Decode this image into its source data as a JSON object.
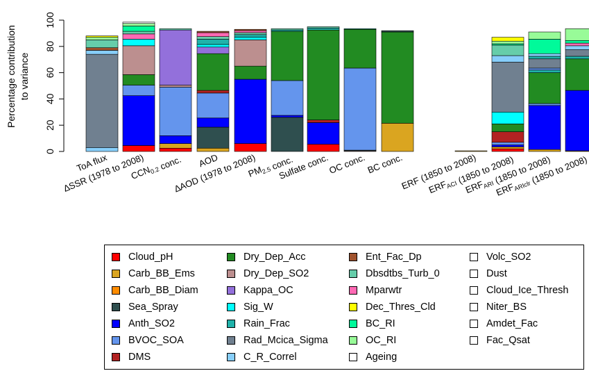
{
  "chart_data": {
    "type": "bar",
    "stacked": true,
    "ylabel": "Percentage contribution to variance",
    "ylabel_lines": [
      "Percentage contribution",
      "to variance"
    ],
    "ylim": [
      0,
      100
    ],
    "yticks": [
      0,
      20,
      40,
      60,
      80,
      100
    ],
    "categories": [
      {
        "key": "toa",
        "label": [
          {
            "t": "ToA flux"
          }
        ]
      },
      {
        "key": "dssr",
        "label": [
          {
            "t": "∆SSR (1978 to 2008)"
          }
        ]
      },
      {
        "key": "ccn",
        "label": [
          {
            "t": "CCN"
          },
          {
            "t": "0.2",
            "sub": true
          },
          {
            "t": " conc."
          }
        ]
      },
      {
        "key": "aod",
        "label": [
          {
            "t": "AOD"
          }
        ]
      },
      {
        "key": "daod",
        "label": [
          {
            "t": "∆AOD (1978 to 2008)"
          }
        ]
      },
      {
        "key": "pm25",
        "label": [
          {
            "t": "PM"
          },
          {
            "t": "2.5",
            "sub": true
          },
          {
            "t": " conc."
          }
        ]
      },
      {
        "key": "sulf",
        "label": [
          {
            "t": "Sulfate conc."
          }
        ]
      },
      {
        "key": "oc",
        "label": [
          {
            "t": "OC conc."
          }
        ]
      },
      {
        "key": "bc",
        "label": [
          {
            "t": "BC conc."
          }
        ]
      },
      {
        "key": "erf",
        "label": [
          {
            "t": "ERF (1850 to 2008)"
          }
        ]
      },
      {
        "key": "erfaci",
        "label": [
          {
            "t": "ERF"
          },
          {
            "t": "ACI",
            "sub": true
          },
          {
            "t": " (1850 to 2008)"
          }
        ]
      },
      {
        "key": "erfari",
        "label": [
          {
            "t": "ERF"
          },
          {
            "t": "ARI",
            "sub": true
          },
          {
            "t": " (1850 to 2008)"
          }
        ]
      },
      {
        "key": "erfariclr",
        "label": [
          {
            "t": "ERF"
          },
          {
            "t": "ARIclr",
            "sub": true
          },
          {
            "t": " (1850 to 2008)"
          }
        ]
      }
    ],
    "legend": [
      {
        "name": "Cloud_pH",
        "color": "#ff0000"
      },
      {
        "name": "Carb_BB_Ems",
        "color": "#daa520"
      },
      {
        "name": "Carb_BB_Diam",
        "color": "#ff8c00"
      },
      {
        "name": "Sea_Spray",
        "color": "#2f4f4f"
      },
      {
        "name": "Anth_SO2",
        "color": "#0000ff"
      },
      {
        "name": "BVOC_SOA",
        "color": "#6495ed"
      },
      {
        "name": "DMS",
        "color": "#b22222"
      },
      {
        "name": "Dry_Dep_Acc",
        "color": "#228b22"
      },
      {
        "name": "Dry_Dep_SO2",
        "color": "#bc8f8f"
      },
      {
        "name": "Kappa_OC",
        "color": "#9370db"
      },
      {
        "name": "Sig_W",
        "color": "#00ffff"
      },
      {
        "name": "Rain_Frac",
        "color": "#20b2aa"
      },
      {
        "name": "Rad_Mcica_Sigma",
        "color": "#708090"
      },
      {
        "name": "C_R_Correl",
        "color": "#87cefa"
      },
      {
        "name": "Ent_Fac_Dp",
        "color": "#a0522d"
      },
      {
        "name": "Dbsdtbs_Turb_0",
        "color": "#66cdaa"
      },
      {
        "name": "Mparwtr",
        "color": "#ff69b4"
      },
      {
        "name": "Dec_Thres_Cld",
        "color": "#ffff00"
      },
      {
        "name": "BC_RI",
        "color": "#00fa9a"
      },
      {
        "name": "OC_RI",
        "color": "#98fb98"
      },
      {
        "name": "Ageing",
        "color": "#ffffff"
      },
      {
        "name": "Volc_SO2",
        "color": "#ffffff"
      },
      {
        "name": "Dust",
        "color": "#ffffff"
      },
      {
        "name": "Cloud_Ice_Thresh",
        "color": "#ffffff"
      },
      {
        "name": "Niter_BS",
        "color": "#ffffff"
      },
      {
        "name": "Amdet_Fac",
        "color": "#ffffff"
      },
      {
        "name": "Fac_Qsat",
        "color": "#ffffff"
      }
    ],
    "series_values": {
      "toa": [
        [
          "C_R_Correl",
          3
        ],
        [
          "Rad_Mcica_Sigma",
          71
        ],
        [
          "C_R_Correl",
          3
        ],
        [
          "Ent_Fac_Dp",
          2
        ],
        [
          "Dbsdtbs_Turb_0",
          6
        ],
        [
          "OC_RI",
          2
        ],
        [
          "Dec_Thres_Cld",
          1
        ]
      ],
      "dssr": [
        [
          "Cloud_pH",
          4.5
        ],
        [
          "Anth_SO2",
          38
        ],
        [
          "BVOC_SOA",
          8
        ],
        [
          "Dry_Dep_Acc",
          8
        ],
        [
          "Dry_Dep_SO2",
          22
        ],
        [
          "Sig_W",
          5
        ],
        [
          "Mparwtr",
          4
        ],
        [
          "Dbsdtbs_Turb_0",
          2
        ],
        [
          "BC_RI",
          4
        ],
        [
          "OC_RI",
          2
        ],
        [
          "Ageing",
          1
        ]
      ],
      "ccn": [
        [
          "Cloud_pH",
          2.5
        ],
        [
          "Carb_BB_Ems",
          3.5
        ],
        [
          "Anth_SO2",
          6
        ],
        [
          "BVOC_SOA",
          37
        ],
        [
          "Dry_Dep_SO2",
          1.5
        ],
        [
          "Kappa_OC",
          42
        ],
        [
          "Dbsdtbs_Turb_0",
          1
        ]
      ],
      "aod": [
        [
          "Carb_BB_Ems",
          2.5
        ],
        [
          "Sea_Spray",
          16
        ],
        [
          "Anth_SO2",
          7
        ],
        [
          "BVOC_SOA",
          19
        ],
        [
          "DMS",
          2
        ],
        [
          "Dry_Dep_Acc",
          28
        ],
        [
          "Kappa_OC",
          5
        ],
        [
          "Sig_W",
          2
        ],
        [
          "Rain_Frac",
          4
        ],
        [
          "Dbsdtbs_Turb_0",
          2
        ],
        [
          "Mparwtr",
          3
        ],
        [
          "Ent_Fac_Dp",
          1
        ]
      ],
      "daod": [
        [
          "Cloud_pH",
          6
        ],
        [
          "Anth_SO2",
          49
        ],
        [
          "Dry_Dep_Acc",
          10
        ],
        [
          "Dry_Dep_SO2",
          20
        ],
        [
          "Sig_W",
          2
        ],
        [
          "Rain_Frac",
          2
        ],
        [
          "Dbsdtbs_Turb_0",
          1.5
        ],
        [
          "Mparwtr",
          1.5
        ],
        [
          "Ent_Fac_Dp",
          1
        ]
      ],
      "pm25": [
        [
          "Sea_Spray",
          26
        ],
        [
          "Anth_SO2",
          1.5
        ],
        [
          "BVOC_SOA",
          26.5
        ],
        [
          "Dry_Dep_Acc",
          37.5
        ],
        [
          "Rain_Frac",
          1
        ],
        [
          "Dbsdtbs_Turb_0",
          1
        ]
      ],
      "sulf": [
        [
          "Cloud_pH",
          5.5
        ],
        [
          "Anth_SO2",
          16.5
        ],
        [
          "DMS",
          2
        ],
        [
          "Dry_Dep_Acc",
          68.5
        ],
        [
          "Rain_Frac",
          1.5
        ],
        [
          "Dbsdtbs_Turb_0",
          1
        ]
      ],
      "oc": [
        [
          "Dry_Dep_SO2",
          0.5
        ],
        [
          "Sea_Spray",
          0.5
        ],
        [
          "BVOC_SOA",
          62.5
        ],
        [
          "Dry_Dep_Acc",
          29.5
        ],
        [
          "Rain_Frac",
          0.5
        ]
      ],
      "bc": [
        [
          "Carb_BB_Ems",
          21.5
        ],
        [
          "Dry_Dep_Acc",
          69.5
        ],
        [
          "Sea_Spray",
          1
        ]
      ],
      "erf": [
        [
          "Carb_BB_Ems",
          0.5
        ]
      ],
      "erfaci": [
        [
          "Carb_BB_Ems",
          1
        ],
        [
          "Cloud_pH",
          2
        ],
        [
          "Carb_BB_Ems",
          1.5
        ],
        [
          "DMS",
          6.5
        ],
        [
          "Dry_Dep_Acc",
          11
        ],
        [
          "Sig_W",
          8
        ],
        [
          "Rad_Mcica_Sigma",
          34
        ],
        [
          "C_R_Correl",
          5
        ],
        [
          "Dbsdtbs_Turb_0",
          4
        ],
        [
          "OC_RI",
          3
        ],
        [
          "BC_RI",
          2
        ],
        [
          "Mparwtr",
          1
        ],
        [
          "Dec_Thres_Cld",
          2
        ]
      ],
      "erfaci_b": [
        [
          "Cloud_pH",
          2
        ],
        [
          "Carb_BB_Ems",
          1.5
        ],
        [
          "Anth_SO2",
          1.5
        ],
        [
          "BVOC_SOA",
          2
        ],
        [
          "DMS",
          8
        ],
        [
          "Dry_Dep_Acc",
          6
        ],
        [
          "Sig_W",
          9
        ],
        [
          "Rad_Mcica_Sigma",
          38
        ],
        [
          "C_R_Correl",
          5
        ],
        [
          "Dbsdtbs_Turb_0",
          8
        ],
        [
          "BC_RI",
          1
        ],
        [
          "OC_RI",
          2
        ],
        [
          "Dec_Thres_Cld",
          3
        ]
      ],
      "erfari": [
        [
          "Carb_BB_Ems",
          1.5
        ],
        [
          "Anth_SO2",
          33.5
        ],
        [
          "BVOC_SOA",
          1.5
        ],
        [
          "Dry_Dep_Acc",
          23.5
        ],
        [
          "Rain_Frac",
          2
        ],
        [
          "BVOC_SOA",
          1.5
        ],
        [
          "Rad_Mcica_Sigma",
          7
        ],
        [
          "Rain_Frac",
          2
        ],
        [
          "C_R_Correl",
          2
        ],
        [
          "BC_RI",
          11
        ],
        [
          "OC_RI",
          5.5
        ]
      ],
      "erfariclr": [
        [
          "Carb_BB_Ems",
          0.5
        ],
        [
          "Anth_SO2",
          46
        ],
        [
          "Dry_Dep_Acc",
          24
        ],
        [
          "Rain_Frac",
          2
        ],
        [
          "Rad_Mcica_Sigma",
          5
        ],
        [
          "C_R_Correl",
          3
        ],
        [
          "Mparwtr",
          2
        ],
        [
          "BC_RI",
          2
        ],
        [
          "OC_RI",
          9
        ]
      ]
    }
  }
}
